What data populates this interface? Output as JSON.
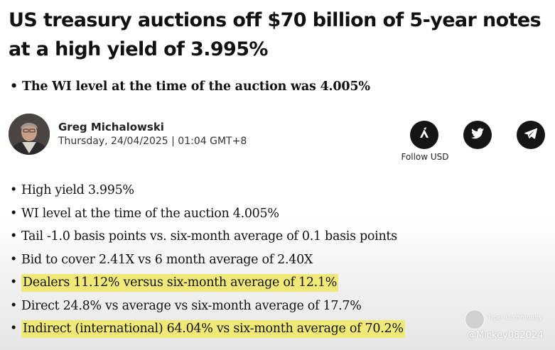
{
  "article": {
    "headline": "US treasury auctions off $70 billion of 5-year notes at a high yield of 3.995%",
    "subpoint": "The WI level at the time of the auction was 4.005%"
  },
  "author": {
    "name": "Greg Michalowski",
    "date": "Thursday, 24/04/2025 | 01:04 GMT+8",
    "avatar": "author-photo"
  },
  "social": {
    "buttons": [
      {
        "icon": "follow-icon"
      },
      {
        "icon": "twitter-icon"
      },
      {
        "icon": "telegram-icon"
      }
    ],
    "follow_label": "Follow USD"
  },
  "bullets": [
    {
      "text": "High yield 3.995%",
      "highlight": false
    },
    {
      "text": "WI level at the time of the auction 4.005%",
      "highlight": false
    },
    {
      "text": "Tail -1.0 basis points vs. six-month average of 0.1 basis points",
      "highlight": false
    },
    {
      "text": "Bid to cover 2.41X vs 6 month average of 2.40X",
      "highlight": false
    },
    {
      "text": "Dealers 11.12% versus six-month average of 12.1%",
      "highlight": true
    },
    {
      "text": "Direct 24.8% vs average vs six-month average of 17.7%",
      "highlight": false
    },
    {
      "text": "Indirect (international) 64.04% vs six-month average of 70.2%",
      "highlight": true
    }
  ],
  "watermark": {
    "brand": "Tiger Community",
    "handle": "@Mickey082024"
  },
  "colors": {
    "highlight": "#f0e977",
    "icon_bg": "#151515",
    "text": "#111111"
  }
}
